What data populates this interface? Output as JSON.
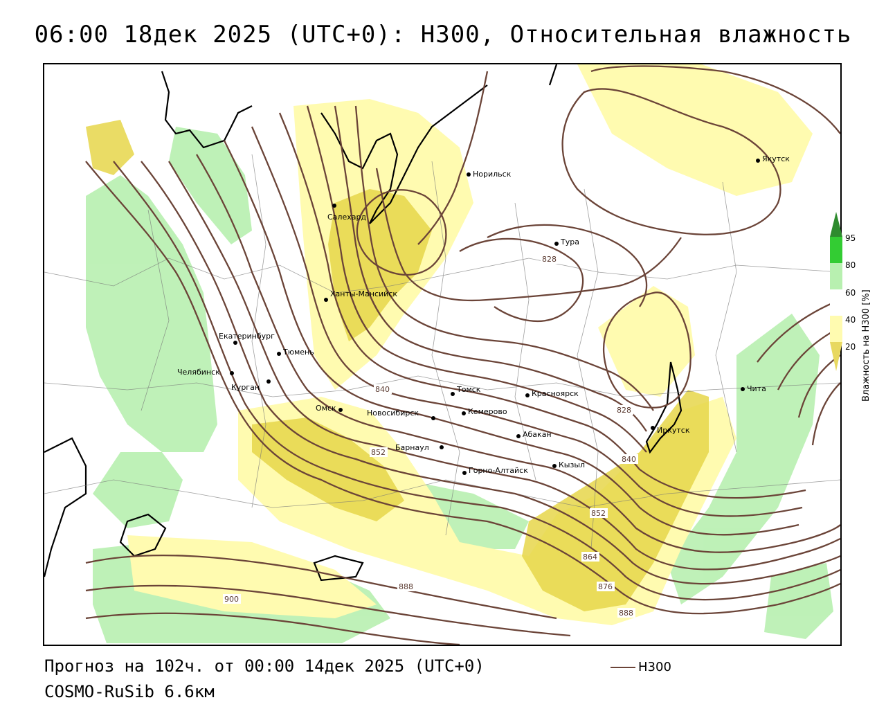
{
  "title": "06:00 18дек 2025 (UTC+0): H300, Относительная влажность",
  "footer": {
    "forecast": "Прогноз на 102ч. от 00:00 14дек 2025 (UTC+0)",
    "model": "COSMO-RuSib 6.6км"
  },
  "legend": {
    "label": "H300",
    "color": "#6b4438"
  },
  "colorbar": {
    "title": "Влажность на H300 [%]",
    "ticks": [
      "95",
      "80",
      "60",
      "40",
      "20"
    ],
    "colors": {
      "dark_green": "#2e8b2e",
      "green": "#33cc33",
      "light_green": "#b8f0b0",
      "white": "#ffffff",
      "light_yellow": "#fffbb0",
      "yellow": "#e8d860"
    }
  },
  "cities": [
    {
      "name": "Норильск"
    },
    {
      "name": "Якутск"
    },
    {
      "name": "Салехард"
    },
    {
      "name": "Тура"
    },
    {
      "name": "Ханты-Мансийск"
    },
    {
      "name": "Екатеринбург"
    },
    {
      "name": "Тюмень"
    },
    {
      "name": "Челябинск"
    },
    {
      "name": "Курган"
    },
    {
      "name": "Омск"
    },
    {
      "name": "Томск"
    },
    {
      "name": "Новосибирск"
    },
    {
      "name": "Кемерово"
    },
    {
      "name": "Красноярск"
    },
    {
      "name": "Барнаул"
    },
    {
      "name": "Абакан"
    },
    {
      "name": "Иркутск"
    },
    {
      "name": "Чита"
    },
    {
      "name": "Кызыл"
    },
    {
      "name": "Горно-Алтайск"
    }
  ],
  "contour_labels": [
    "828",
    "840",
    "852",
    "828",
    "840",
    "852",
    "864",
    "876",
    "888",
    "888",
    "900"
  ]
}
